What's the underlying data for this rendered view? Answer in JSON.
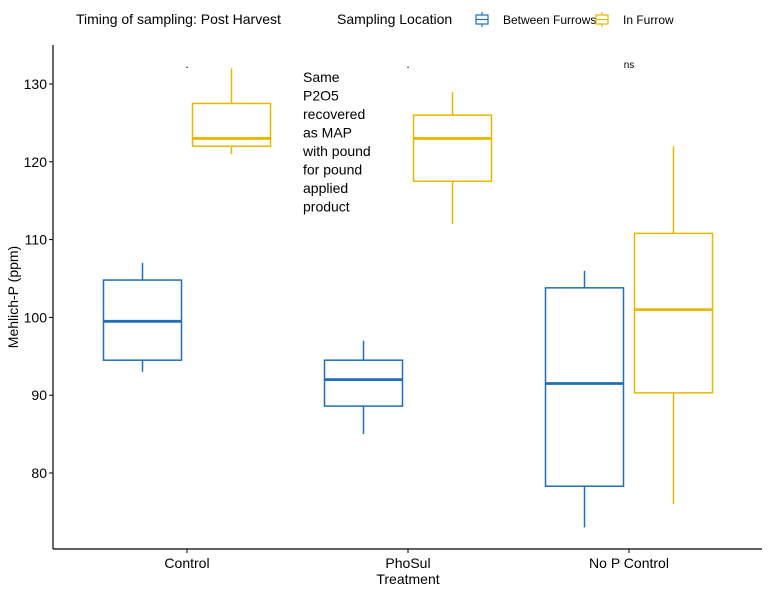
{
  "chart_data": {
    "type": "boxplot",
    "title": "Timing of sampling: Post Harvest",
    "xlabel": "Treatment",
    "ylabel": "Mehlich-P (ppm)",
    "ylim": [
      70,
      135
    ],
    "yticks": [
      80,
      90,
      100,
      110,
      120,
      130
    ],
    "ytick_labels": [
      "80",
      "90",
      "100",
      "110",
      "120",
      "130"
    ],
    "categories": [
      "Control",
      "PhoSul",
      "No P Control"
    ],
    "grid": false,
    "legend": {
      "title": "Sampling Location",
      "placement": "top",
      "entries": [
        "Between Furrows",
        "In Furrow"
      ]
    },
    "series": [
      {
        "name": "Between Furrows",
        "color": "#1f6fb5",
        "boxes": [
          {
            "category": "Control",
            "min": 93,
            "q1": 94.5,
            "median": 99.5,
            "q3": 104.8,
            "max": 107
          },
          {
            "category": "PhoSul",
            "min": 85,
            "q1": 88.6,
            "median": 92,
            "q3": 94.5,
            "max": 97
          },
          {
            "category": "No P Control",
            "min": 73,
            "q1": 78.3,
            "median": 91.5,
            "q3": 103.8,
            "max": 106
          }
        ]
      },
      {
        "name": "In Furrow",
        "color": "#e8b800",
        "boxes": [
          {
            "category": "Control",
            "min": 121,
            "q1": 122,
            "median": 123,
            "q3": 127.5,
            "max": 132
          },
          {
            "category": "PhoSul",
            "min": 112,
            "q1": 117.5,
            "median": 123,
            "q3": 126,
            "max": 129
          },
          {
            "category": "No P Control",
            "min": 76,
            "q1": 90.3,
            "median": 101,
            "q3": 110.8,
            "max": 122
          }
        ]
      }
    ],
    "significance": [
      {
        "category": "Control",
        "label": "."
      },
      {
        "category": "PhoSul",
        "label": "."
      },
      {
        "category": "No P Control",
        "label": "ns"
      }
    ],
    "annotation": {
      "lines": [
        "Same",
        "P2O5",
        "recovered",
        "as MAP",
        "with pound",
        "for pound",
        "applied",
        "product"
      ]
    }
  }
}
